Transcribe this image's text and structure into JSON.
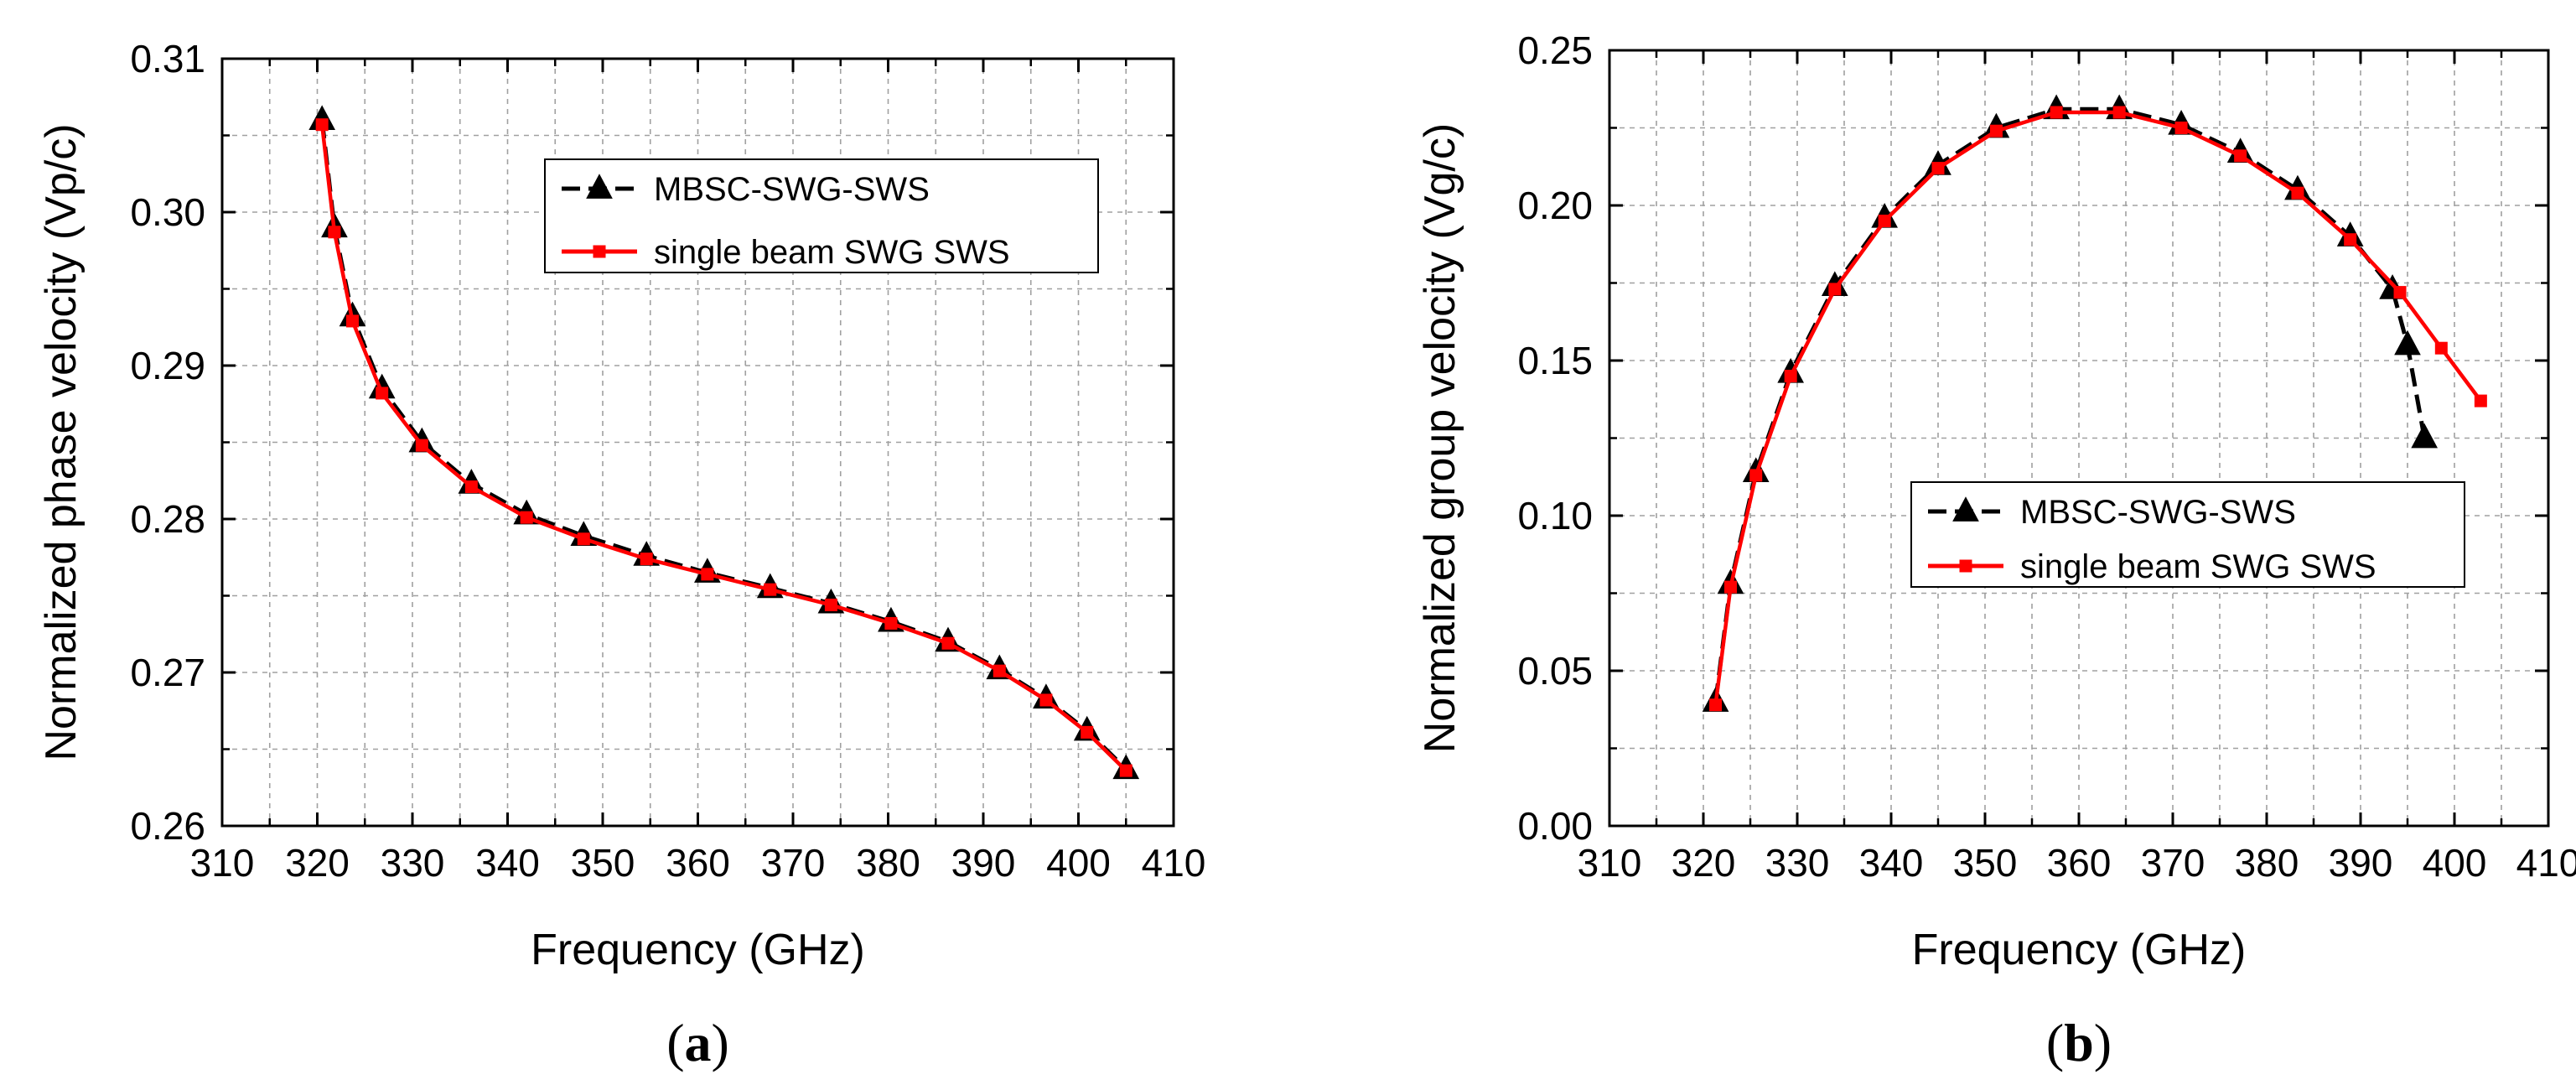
{
  "chart_data": [
    {
      "type": "line",
      "panel_label": "a",
      "xlabel": "Frequency (GHz)",
      "ylabel": "Normalized phase velocity (Vp/c)",
      "xlim": [
        310,
        410
      ],
      "ylim": [
        0.26,
        0.31
      ],
      "xticks": [
        "310",
        "320",
        "330",
        "340",
        "350",
        "360",
        "370",
        "380",
        "390",
        "400",
        "410"
      ],
      "yticks": [
        "0.26",
        "0.27",
        "0.28",
        "0.29",
        "0.30",
        "0.31"
      ],
      "grid": true,
      "legend_position": "top-right",
      "series": [
        {
          "name": "MBSC-SWG-SWS",
          "color": "#000000",
          "marker": "triangle",
          "x": [
            320.5,
            321.8,
            323.7,
            326.8,
            331.0,
            336.2,
            342.0,
            348.0,
            354.6,
            361.0,
            367.6,
            374.0,
            380.3,
            386.3,
            391.7,
            396.6,
            400.9,
            405.0
          ],
          "y": [
            0.306,
            0.299,
            0.2932,
            0.2885,
            0.285,
            0.2823,
            0.2803,
            0.2789,
            0.2776,
            0.2765,
            0.2755,
            0.2745,
            0.2733,
            0.272,
            0.2702,
            0.2683,
            0.2662,
            0.2637
          ]
        },
        {
          "name": "single beam SWG SWS",
          "color": "#ff0000",
          "marker": "square",
          "x": [
            320.5,
            321.8,
            323.7,
            326.8,
            331.0,
            336.2,
            342.0,
            348.0,
            354.6,
            361.0,
            367.6,
            374.0,
            380.3,
            386.3,
            391.7,
            396.6,
            400.9,
            405.0
          ],
          "y": [
            0.3057,
            0.2987,
            0.2929,
            0.2882,
            0.2848,
            0.2821,
            0.2801,
            0.2787,
            0.2774,
            0.2764,
            0.2754,
            0.2744,
            0.2732,
            0.2719,
            0.2701,
            0.2682,
            0.2661,
            0.2636
          ]
        }
      ]
    },
    {
      "type": "line",
      "panel_label": "b",
      "xlabel": "Frequency (GHz)",
      "ylabel": "Normalized group velocity (Vg/c)",
      "xlim": [
        310,
        410
      ],
      "ylim": [
        0.0,
        0.25
      ],
      "xticks": [
        "310",
        "320",
        "330",
        "340",
        "350",
        "360",
        "370",
        "380",
        "390",
        "400",
        "410"
      ],
      "yticks": [
        "0.00",
        "0.05",
        "0.10",
        "0.15",
        "0.20",
        "0.25"
      ],
      "grid": true,
      "legend_position": "center-right",
      "series": [
        {
          "name": "MBSC-SWG-SWS",
          "color": "#000000",
          "marker": "triangle",
          "x": [
            321.3,
            322.9,
            325.6,
            329.3,
            334.0,
            339.3,
            345.0,
            351.2,
            357.6,
            364.3,
            370.9,
            377.2,
            383.3,
            388.9,
            393.4,
            395.0,
            396.8
          ],
          "y": [
            0.04,
            0.078,
            0.114,
            0.146,
            0.174,
            0.196,
            0.213,
            0.225,
            0.231,
            0.231,
            0.226,
            0.217,
            0.205,
            0.19,
            0.173,
            0.155,
            0.125
          ]
        },
        {
          "name": "single beam SWG SWS",
          "color": "#ff0000",
          "marker": "square",
          "x": [
            321.3,
            322.9,
            325.6,
            329.3,
            334.0,
            339.3,
            345.0,
            351.2,
            357.6,
            364.3,
            370.9,
            377.2,
            383.3,
            388.9,
            394.2,
            398.6,
            402.8
          ],
          "y": [
            0.039,
            0.077,
            0.113,
            0.145,
            0.173,
            0.195,
            0.212,
            0.224,
            0.23,
            0.23,
            0.225,
            0.216,
            0.204,
            0.189,
            0.172,
            0.154,
            0.137
          ]
        }
      ]
    }
  ]
}
